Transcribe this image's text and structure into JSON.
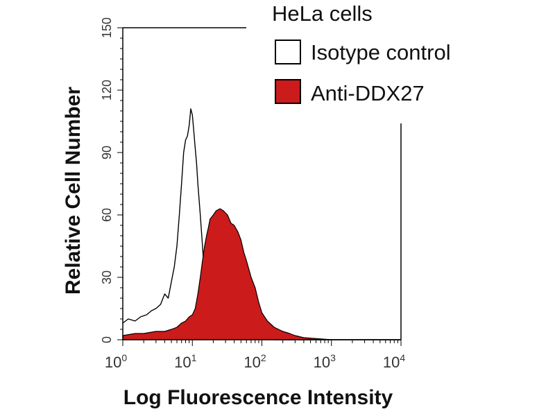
{
  "chart_data": {
    "type": "histogram",
    "title": "",
    "xlabel": "Log Fluorescence Intensity",
    "ylabel": "Relative Cell Number",
    "x_scale": "log",
    "xlim": [
      1,
      10000
    ],
    "ylim": [
      0,
      150
    ],
    "x_ticks": [
      {
        "value": 1,
        "base": "10",
        "exp": "0"
      },
      {
        "value": 10,
        "base": "10",
        "exp": "1"
      },
      {
        "value": 100,
        "base": "10",
        "exp": "2"
      },
      {
        "value": 1000,
        "base": "10",
        "exp": "3"
      },
      {
        "value": 10000,
        "base": "10",
        "exp": "4"
      }
    ],
    "y_ticks": [
      {
        "value": 0,
        "label": "0"
      },
      {
        "value": 30,
        "label": "30"
      },
      {
        "value": 60,
        "label": "60"
      },
      {
        "value": 90,
        "label": "90"
      },
      {
        "value": 120,
        "label": "120"
      },
      {
        "value": 150,
        "label": "150"
      }
    ],
    "legend": {
      "title": "HeLa cells",
      "position": "top-right"
    },
    "series": [
      {
        "name": "Isotype control",
        "style": "outline",
        "color": "#000000",
        "x": [
          1,
          1.2,
          1.5,
          1.8,
          2.2,
          2.6,
          3.0,
          3.5,
          4.0,
          4.5,
          5.0,
          5.5,
          6.0,
          6.5,
          7.0,
          7.5,
          8.0,
          8.5,
          9.0,
          9.5,
          10,
          10.5,
          11,
          11.5,
          12,
          13,
          14,
          15,
          16,
          17,
          18,
          20,
          22,
          25,
          28,
          32,
          36,
          40,
          50,
          60,
          80,
          100,
          150,
          300,
          1000,
          10000
        ],
        "y": [
          8,
          10,
          9,
          11,
          12,
          14,
          15,
          17,
          22,
          20,
          28,
          35,
          45,
          60,
          75,
          90,
          96,
          98,
          103,
          111,
          108,
          100,
          92,
          85,
          75,
          60,
          45,
          30,
          20,
          14,
          9,
          6,
          4,
          3,
          2,
          2,
          2,
          1,
          1,
          1,
          0.5,
          0.5,
          0,
          0,
          0,
          0
        ]
      },
      {
        "name": "Anti-DDX27",
        "style": "filled",
        "color": "#cc1b1b",
        "x": [
          1,
          1.5,
          2,
          3,
          4,
          5,
          6,
          7,
          8,
          9,
          10,
          11,
          12,
          13,
          14,
          15,
          16,
          17,
          18,
          20,
          22,
          25,
          28,
          32,
          36,
          40,
          45,
          50,
          55,
          60,
          70,
          80,
          90,
          100,
          120,
          150,
          200,
          250,
          300,
          400,
          1000,
          10000
        ],
        "y": [
          2,
          3,
          3,
          4,
          4,
          5,
          6,
          8,
          9,
          11,
          12,
          15,
          22,
          30,
          38,
          45,
          50,
          54,
          58,
          60,
          62,
          63,
          62,
          60,
          56,
          55,
          52,
          48,
          42,
          38,
          30,
          25,
          18,
          13,
          9,
          6,
          4,
          3,
          2,
          1,
          0,
          0
        ]
      }
    ]
  }
}
